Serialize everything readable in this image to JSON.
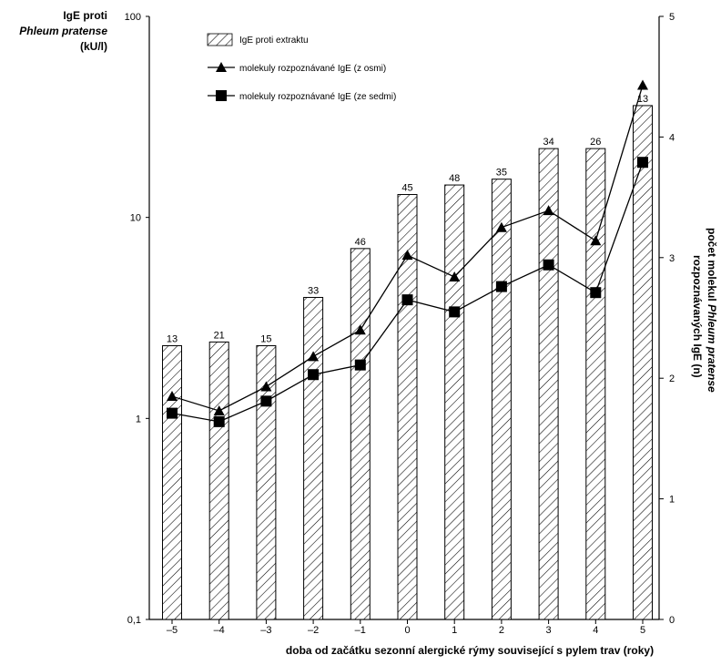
{
  "chart_data": {
    "type": "bar+line",
    "x": [
      -5,
      -4,
      -3,
      -2,
      -1,
      0,
      1,
      2,
      3,
      4,
      5
    ],
    "x_tick_labels": [
      "–5",
      "–4",
      "–3",
      "–2",
      "–1",
      "0",
      "1",
      "2",
      "3",
      "4",
      "5"
    ],
    "xlabel": "doba od začátku sezonní alergické rýmy související s pylem trav (roky)",
    "left_axis": {
      "title_line1": "IgE proti",
      "title_line2": "Phleum pratense",
      "title_line3": "(kU/l)",
      "scale": "log",
      "ylim": [
        0.1,
        100
      ],
      "ticks": [
        0.1,
        1,
        10,
        100
      ],
      "tick_labels": [
        "0,1",
        "1",
        "10",
        "100"
      ]
    },
    "right_axis": {
      "title_line1": "počet molekul Phleum pratense",
      "title_line2": "rozpoznávaných IgE (n)",
      "title_plain": "počet molekul ",
      "title_italic": "Phleum pratense",
      "ylim": [
        0,
        5
      ],
      "ticks": [
        0,
        1,
        2,
        3,
        4,
        5
      ],
      "tick_labels": [
        "0",
        "1",
        "2",
        "3",
        "4",
        "5"
      ]
    },
    "bars": {
      "name": "IgE proti extraktu",
      "axis": "left",
      "values": [
        2.3,
        2.4,
        2.3,
        4.0,
        7.0,
        13.0,
        14.5,
        15.5,
        22.0,
        22.0,
        36.0
      ],
      "labels": [
        "13",
        "21",
        "15",
        "33",
        "46",
        "45",
        "48",
        "35",
        "34",
        "26",
        "13"
      ]
    },
    "series": [
      {
        "name": "molekuly rozpoznávané IgE (z osmi)",
        "marker": "triangle",
        "axis": "right",
        "values": [
          1.85,
          1.73,
          1.93,
          2.18,
          2.4,
          3.02,
          2.84,
          3.25,
          3.39,
          3.14,
          4.43
        ]
      },
      {
        "name": "molekuly rozpoznávané IgE (ze sedmi)",
        "marker": "square",
        "axis": "right",
        "values": [
          1.71,
          1.64,
          1.81,
          2.03,
          2.11,
          2.65,
          2.55,
          2.76,
          2.94,
          2.71,
          3.79
        ]
      }
    ]
  }
}
